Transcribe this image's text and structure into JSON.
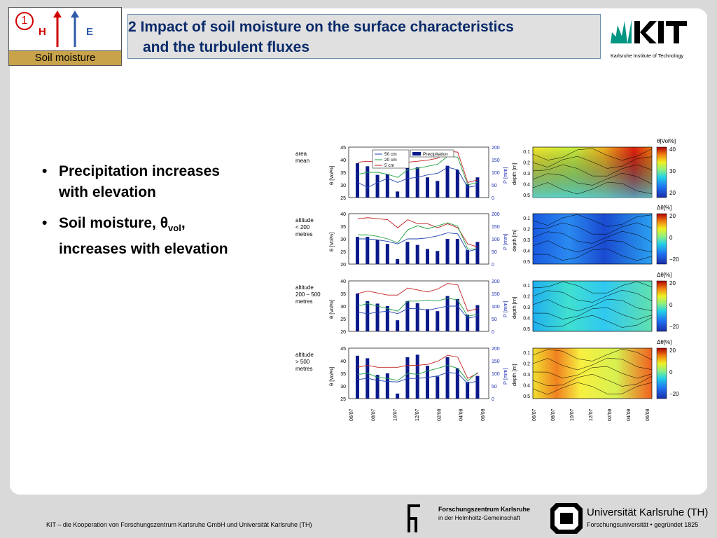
{
  "badge": {
    "number": "1",
    "h": "H",
    "e": "E",
    "label": "Soil moisture"
  },
  "title": {
    "line1": "2 Impact of soil moisture on the surface characteristics",
    "line2": "and the turbulent fluxes"
  },
  "kit_logo": {
    "name": "KIT",
    "subtitle": "Karlsruhe Institute of Technology"
  },
  "bullets": {
    "b1_line1": "Precipitation increases",
    "b1_line2": "with elevation",
    "b2_line1_pre": "Soil moisture, θ",
    "b2_sub": "vol",
    "b2_line1_post": ",",
    "b2_line2": "increases with elevation"
  },
  "figure": {
    "legend": [
      "50 cm",
      "20 cm",
      "5 cm"
    ],
    "legend_precip": "Precipitation",
    "theta_axis_label": "θ [Vol%]",
    "p_axis_label": "P [mm]",
    "depth_axis_label": "depth [m]",
    "colorbar_labels": [
      "θ[Vol%]",
      "Δθ[%]",
      "Δθ[%]",
      "Δθ[%]"
    ],
    "dates": [
      "06/07",
      "08/07",
      "10/07",
      "12/07",
      "02/08",
      "04/08",
      "06/08"
    ],
    "rows": [
      {
        "label1": "area",
        "label2": "mean",
        "label3": "",
        "theta_ticks": [
          "45",
          "40",
          "35",
          "30",
          "25"
        ],
        "p_ticks": [
          "200",
          "150",
          "100",
          "50",
          "0"
        ],
        "cb_ticks": [
          "40",
          "30",
          "20"
        ]
      },
      {
        "label1": "altitude",
        "label2": "< 200",
        "label3": "metres",
        "theta_ticks": [
          "40",
          "35",
          "30",
          "25",
          "20"
        ],
        "p_ticks": [
          "200",
          "150",
          "100",
          "50",
          "0"
        ],
        "cb_ticks": [
          "20",
          "0",
          "−20"
        ]
      },
      {
        "label1": "altitude",
        "label2": "200 – 500",
        "label3": "metres",
        "theta_ticks": [
          "40",
          "35",
          "30",
          "25",
          "20"
        ],
        "p_ticks": [
          "200",
          "150",
          "100",
          "50",
          "0"
        ],
        "cb_ticks": [
          "20",
          "0",
          "−20"
        ]
      },
      {
        "label1": "altitude",
        "label2": "> 500",
        "label3": "metres",
        "theta_ticks": [
          "45",
          "40",
          "35",
          "30",
          "25"
        ],
        "p_ticks": [
          "200",
          "150",
          "100",
          "50",
          "0"
        ],
        "cb_ticks": [
          "20",
          "0",
          "−20"
        ]
      }
    ],
    "depth_ticks": [
      "0.1",
      "0.2",
      "0.3",
      "0.4",
      "0.5"
    ]
  },
  "footer": {
    "text": "KIT – die Kooperation von Forschungszentrum Karlsruhe GmbH und Universität Karlsruhe (TH)",
    "fzk_l1": "Forschungszentrum Karlsruhe",
    "fzk_l2": "in der Helmholtz-Gemeinschaft",
    "uni_l1": "Universität Karlsruhe (TH)",
    "uni_l2": "Forschungsuniversität • gegründet 1825"
  }
}
